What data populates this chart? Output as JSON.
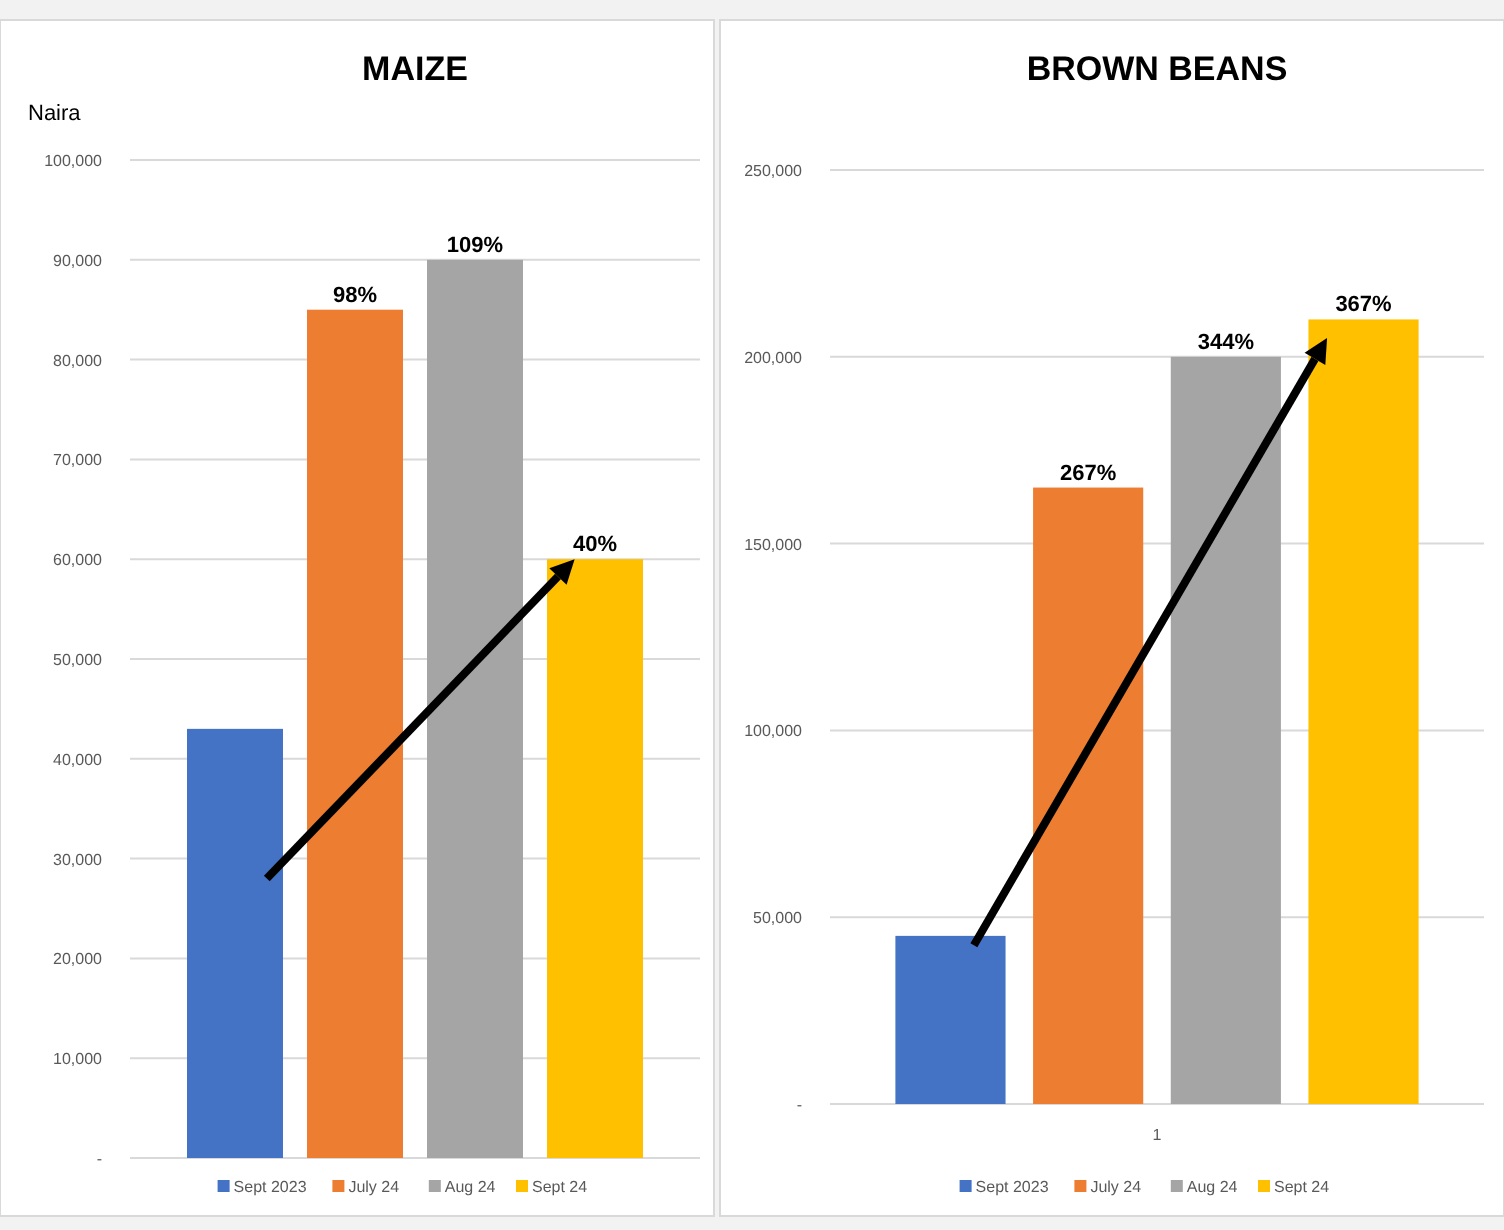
{
  "chart_data": [
    {
      "type": "bar",
      "title": "MAIZE",
      "ylabel": "Naira",
      "categories": [
        null
      ],
      "series": [
        {
          "name": "Sept 2023",
          "color": "#4472c4",
          "values": [
            43000
          ]
        },
        {
          "name": "July 24",
          "color": "#ed7d31",
          "values": [
            85000
          ]
        },
        {
          "name": "Aug 24",
          "color": "#a5a5a5",
          "values": [
            90000
          ]
        },
        {
          "name": "Sept 24",
          "color": "#ffc000",
          "values": [
            60000
          ]
        }
      ],
      "annotations": [
        {
          "text": "98%",
          "y": 85000
        },
        {
          "text": "109%",
          "y": 90000
        },
        {
          "text": "40%",
          "y": 60000
        }
      ],
      "ylim": [
        0,
        100000
      ],
      "yticks": [
        {
          "value": 0,
          "label": "-"
        },
        {
          "value": 10000,
          "label": "10,000"
        },
        {
          "value": 20000,
          "label": "20,000"
        },
        {
          "value": 30000,
          "label": "30,000"
        },
        {
          "value": 40000,
          "label": "40,000"
        },
        {
          "value": 50000,
          "label": "50,000"
        },
        {
          "value": 60000,
          "label": "60,000"
        },
        {
          "value": 70000,
          "label": "70,000"
        },
        {
          "value": 80000,
          "label": "80,000"
        },
        {
          "value": 90000,
          "label": "90,000"
        },
        {
          "value": 100000,
          "label": "100,000"
        }
      ],
      "grid": "y",
      "legend": "bottom"
    },
    {
      "type": "bar",
      "title": "BROWN BEANS",
      "categories": [
        "1"
      ],
      "series": [
        {
          "name": "Sept 2023",
          "color": "#4472c4",
          "values": [
            45000
          ]
        },
        {
          "name": "July 24",
          "color": "#ed7d31",
          "values": [
            165000
          ]
        },
        {
          "name": "Aug 24",
          "color": "#a5a5a5",
          "values": [
            200000
          ]
        },
        {
          "name": "Sept 24",
          "color": "#ffc000",
          "values": [
            210000
          ]
        }
      ],
      "annotations": [
        {
          "text": "267%",
          "y": 165000
        },
        {
          "text": "344%",
          "y": 200000
        },
        {
          "text": "367%",
          "y": 210000
        }
      ],
      "ylim": [
        0,
        250000
      ],
      "yticks": [
        {
          "value": 0,
          "label": "-"
        },
        {
          "value": 50000,
          "label": "50,000"
        },
        {
          "value": 100000,
          "label": "100,000"
        },
        {
          "value": 150000,
          "label": "150,000"
        },
        {
          "value": 200000,
          "label": "200,000"
        },
        {
          "value": 250000,
          "label": "250,000"
        }
      ],
      "grid": "y",
      "legend": "bottom"
    }
  ]
}
